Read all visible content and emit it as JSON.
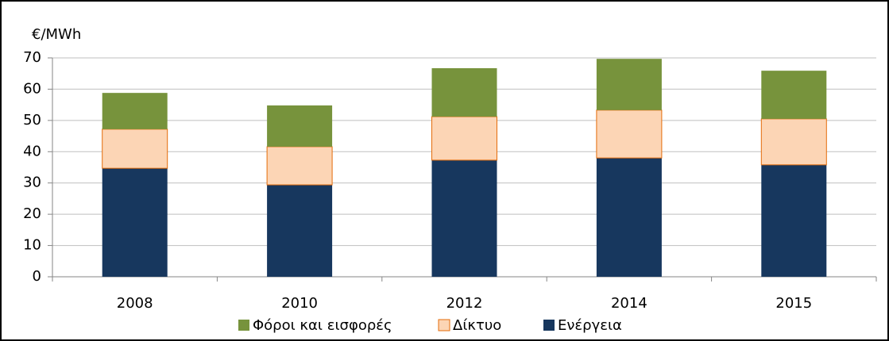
{
  "chart_data": {
    "type": "stacked_bar",
    "y_label": "€/MWh",
    "categories": [
      "2008",
      "2010",
      "2012",
      "2014",
      "2015"
    ],
    "series": [
      {
        "name": "Φόροι και εισφορές",
        "color": "#77933c",
        "values": [
          11.6,
          13.2,
          15.5,
          16.4,
          15.4
        ]
      },
      {
        "name": "Δίκτυο",
        "color": "#fcd5b5",
        "values": [
          12.5,
          12.2,
          13.9,
          15.3,
          14.7
        ]
      },
      {
        "name": "Ενέργεια",
        "color": "#17375e",
        "values": [
          34.7,
          29.4,
          37.3,
          38.0,
          35.8
        ]
      }
    ],
    "ylim": [
      0,
      70
    ],
    "yticks": [
      0,
      10,
      20,
      30,
      40,
      50,
      60,
      70
    ],
    "grid": true,
    "legend": "bottom"
  }
}
